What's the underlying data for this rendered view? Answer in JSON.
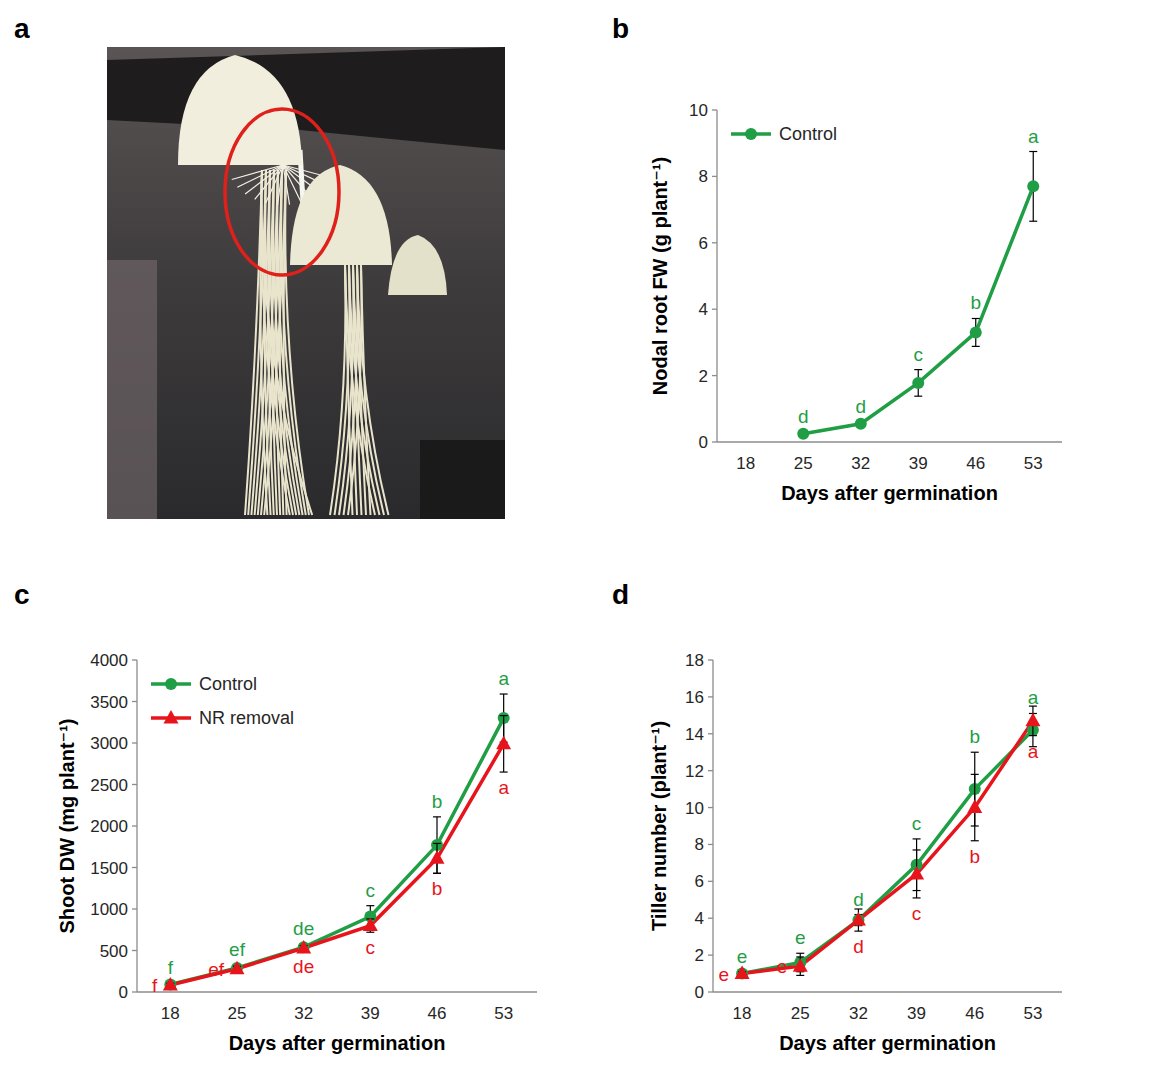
{
  "panel_labels": [
    "a",
    "b",
    "c",
    "d"
  ],
  "chart_data": [
    {
      "type": "line",
      "x_label": "Days after germination",
      "y_label": "Nodal root FW (g plant⁻¹)",
      "x": [
        18,
        25,
        32,
        39,
        46,
        53
      ],
      "xlim": [
        14.5,
        56.5
      ],
      "xticks": [
        18,
        25,
        32,
        39,
        46,
        53
      ],
      "ylim": [
        0,
        10
      ],
      "yticks": [
        0,
        2,
        4,
        6,
        8,
        10
      ],
      "grid": false,
      "legend": "upper left",
      "series": [
        {
          "name": "Control",
          "color": "#1f9e45",
          "marker": "circle",
          "line_style": "solid",
          "values": [
            null,
            0.25,
            0.55,
            1.78,
            3.3,
            7.7
          ],
          "errors": [
            null,
            0.05,
            0.05,
            0.4,
            0.42,
            1.05
          ],
          "annotations": [
            null,
            "d",
            "d",
            "c",
            "b",
            "a"
          ]
        }
      ]
    },
    {
      "type": "line",
      "x_label": "Days after germination",
      "y_label": "Shoot DW (mg plant⁻¹)",
      "x": [
        18,
        25,
        32,
        39,
        46,
        53
      ],
      "xlim": [
        14.5,
        56.5
      ],
      "xticks": [
        18,
        25,
        32,
        39,
        46,
        53
      ],
      "ylim": [
        0,
        4000
      ],
      "yticks": [
        0,
        500,
        1000,
        1500,
        2000,
        2500,
        3000,
        3500,
        4000
      ],
      "grid": false,
      "legend": "upper left",
      "series": [
        {
          "name": "Control",
          "color": "#1f9e45",
          "marker": "circle",
          "line_style": "solid",
          "values": [
            90,
            290,
            540,
            910,
            1770,
            3300
          ],
          "errors": [
            20,
            30,
            40,
            130,
            340,
            290
          ],
          "annotations": [
            "f",
            "ef",
            "de",
            "c",
            "b",
            "a"
          ]
        },
        {
          "name": "NR removal",
          "color": "#e8141c",
          "marker": "triangle",
          "line_style": "solid",
          "values": [
            85,
            280,
            530,
            800,
            1610,
            2990
          ],
          "errors": [
            20,
            30,
            30,
            80,
            180,
            340
          ],
          "annotations": [
            "f",
            "ef",
            "de",
            "c",
            "b",
            "a"
          ]
        }
      ]
    },
    {
      "type": "line",
      "x_label": "Days after germination",
      "y_label": "Tiller number (plant⁻¹)",
      "x": [
        18,
        25,
        32,
        39,
        46,
        53
      ],
      "xlim": [
        14.5,
        56.5
      ],
      "xticks": [
        18,
        25,
        32,
        39,
        46,
        53
      ],
      "ylim": [
        0,
        18
      ],
      "yticks": [
        0,
        2,
        4,
        6,
        8,
        10,
        12,
        14,
        16,
        18
      ],
      "grid": false,
      "series": [
        {
          "name": "Control",
          "color": "#1f9e45",
          "marker": "circle",
          "line_style": "solid",
          "values": [
            1,
            1.6,
            3.9,
            6.9,
            11,
            14.2
          ],
          "errors": [
            0.1,
            0.5,
            0.3,
            1.4,
            2,
            0.9
          ],
          "annotations": [
            "e",
            "e",
            "d",
            "c",
            "b",
            "a"
          ]
        },
        {
          "name": "NR removal",
          "color": "#e8141c",
          "marker": "triangle",
          "line_style": "solid",
          "values": [
            1,
            1.4,
            3.9,
            6.4,
            10,
            14.7
          ],
          "errors": [
            0.1,
            0.5,
            0.6,
            1.3,
            1.8,
            0.8
          ],
          "annotations": [
            "e",
            "e",
            "d",
            "c",
            "b",
            "a"
          ]
        }
      ]
    }
  ]
}
